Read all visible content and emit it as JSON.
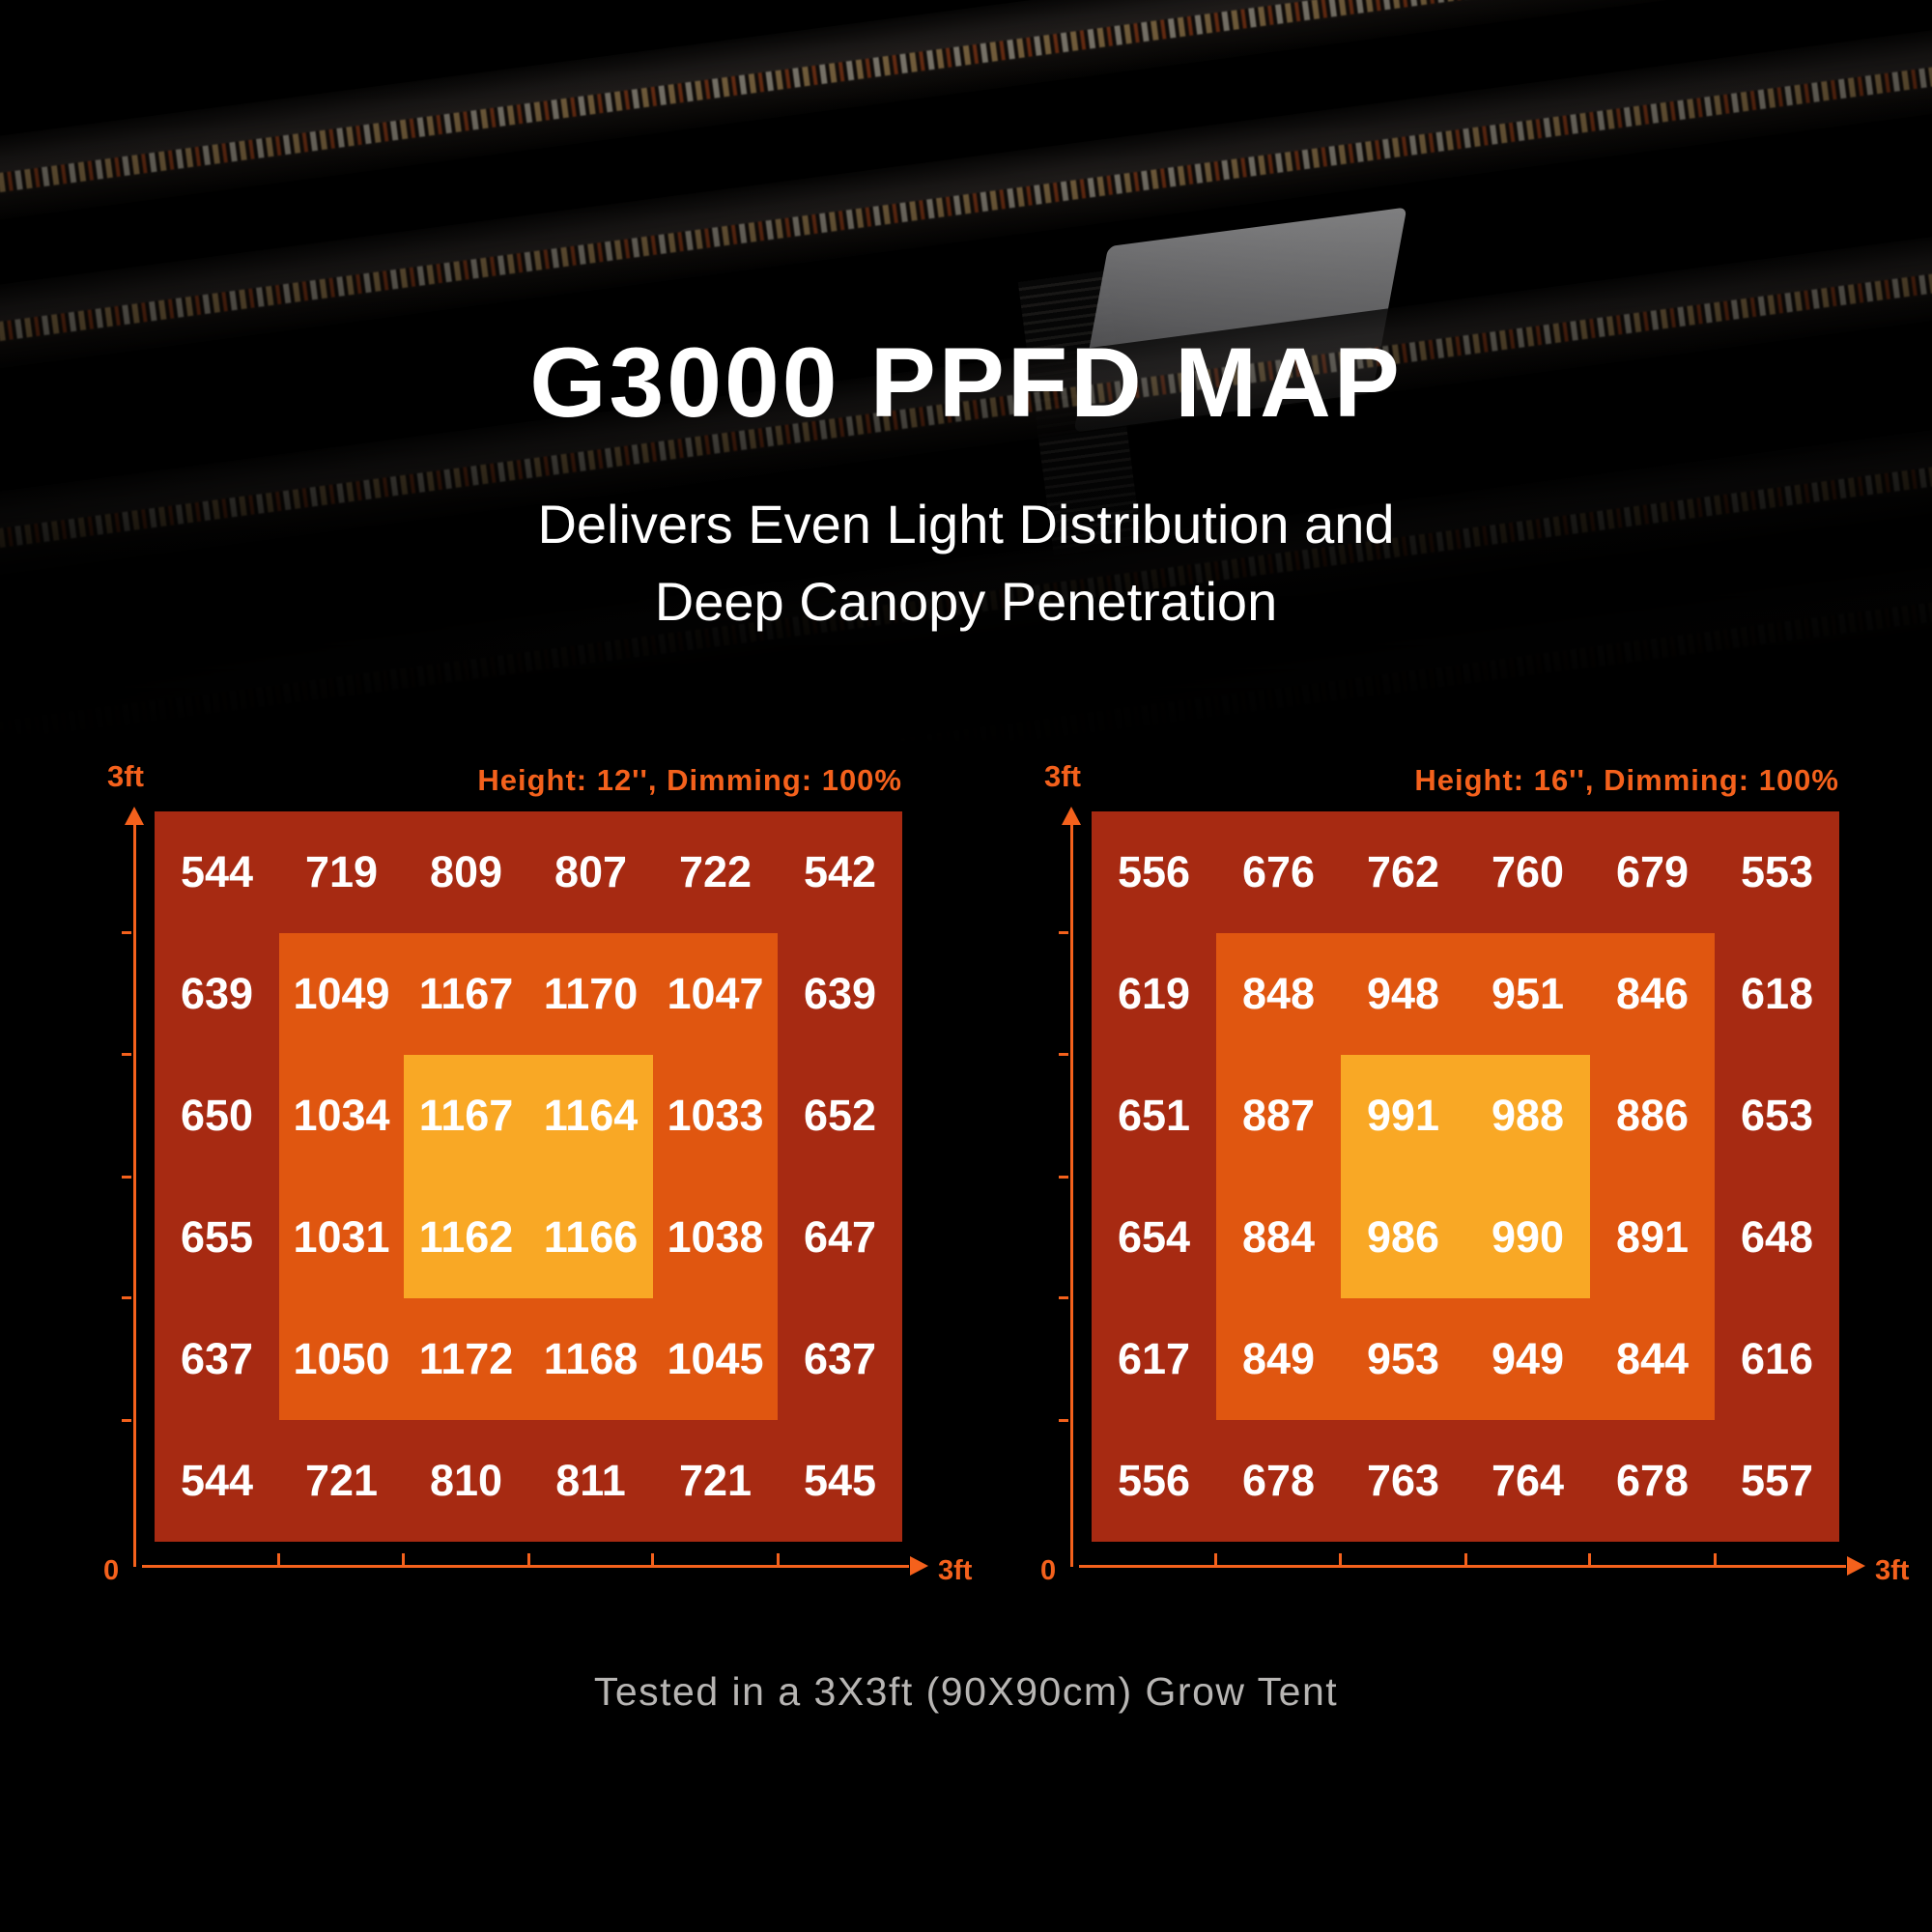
{
  "title": "G3000 PPFD MAP",
  "subtitle_line1": "Delivers Even Light Distribution and",
  "subtitle_line2": "Deep Canopy Penetration",
  "caption": "Tested in a 3X3ft (90X90cm) Grow Tent",
  "colors": {
    "zone_outer": "#A72A12",
    "zone_middle": "#E05610",
    "zone_inner": "#F9A825",
    "axis_orange": "#F4611C",
    "caption_gray": "#B7B5B3",
    "value_text": "#FFFFFF"
  },
  "chart_data": [
    {
      "type": "heatmap",
      "title": "Height: 12'', Dimming: 100%",
      "rows": 6,
      "cols": 6,
      "x_axis": {
        "origin_label": "0",
        "max_label": "3ft",
        "ticks": 5
      },
      "y_axis": {
        "max_label": "3ft",
        "ticks": 5
      },
      "values": [
        [
          544,
          719,
          809,
          807,
          722,
          542
        ],
        [
          639,
          1049,
          1167,
          1170,
          1047,
          639
        ],
        [
          650,
          1034,
          1167,
          1164,
          1033,
          652
        ],
        [
          655,
          1031,
          1162,
          1166,
          1038,
          647
        ],
        [
          637,
          1050,
          1172,
          1168,
          1045,
          637
        ],
        [
          544,
          721,
          810,
          811,
          721,
          545
        ]
      ],
      "zones": {
        "ring0": "outer",
        "ring1": "middle",
        "ring2": "inner"
      }
    },
    {
      "type": "heatmap",
      "title": "Height: 16'', Dimming: 100%",
      "rows": 6,
      "cols": 6,
      "x_axis": {
        "origin_label": "0",
        "max_label": "3ft",
        "ticks": 5
      },
      "y_axis": {
        "max_label": "3ft",
        "ticks": 5
      },
      "values": [
        [
          556,
          676,
          762,
          760,
          679,
          553
        ],
        [
          619,
          848,
          948,
          951,
          846,
          618
        ],
        [
          651,
          887,
          991,
          988,
          886,
          653
        ],
        [
          654,
          884,
          986,
          990,
          891,
          648
        ],
        [
          617,
          849,
          953,
          949,
          844,
          616
        ],
        [
          556,
          678,
          763,
          764,
          678,
          557
        ]
      ],
      "zones": {
        "ring0": "outer",
        "ring1": "middle",
        "ring2": "inner"
      }
    }
  ]
}
